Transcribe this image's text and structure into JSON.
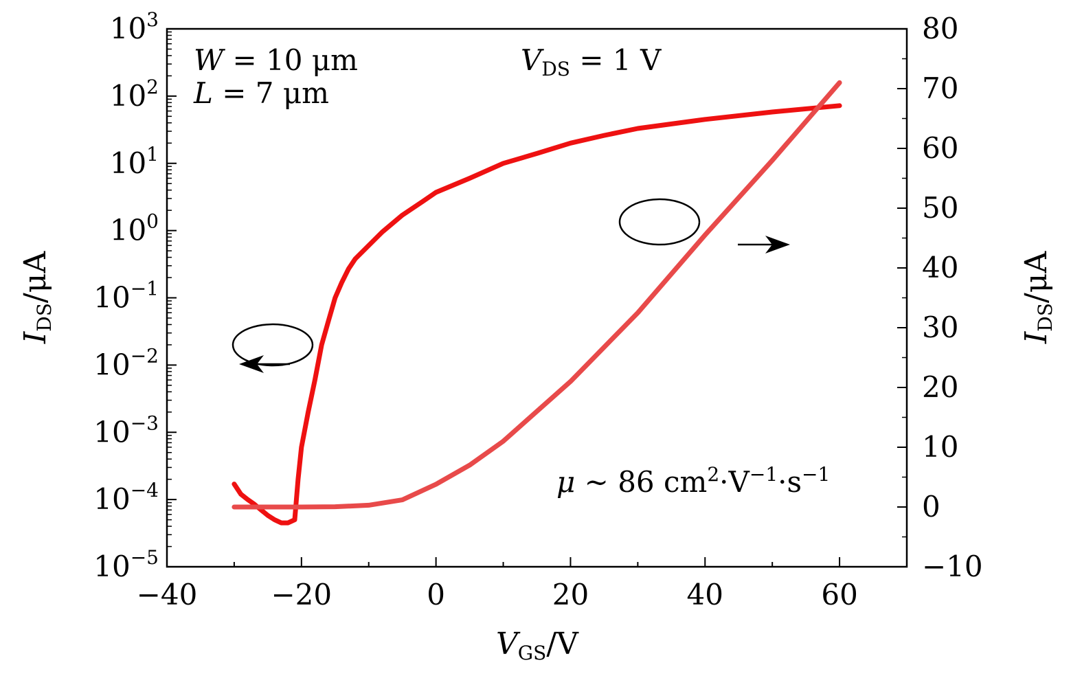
{
  "chart_data": {
    "type": "line",
    "x_axis": {
      "label_main": "V",
      "label_sub": "GS",
      "label_unit": "/V",
      "range": [
        -40,
        70
      ],
      "ticks": [
        -40,
        -20,
        0,
        20,
        40,
        60
      ],
      "tick_labels": [
        "−40",
        "−20",
        "0",
        "20",
        "40",
        "60"
      ]
    },
    "y_left": {
      "label_main": "I",
      "label_sub": "DS",
      "label_unit": "/μA",
      "scale": "log",
      "range_exp": [
        -5,
        3
      ],
      "tick_base": "10",
      "tick_exponents": [
        "−5",
        "−4",
        "−3",
        "−2",
        "−1",
        "0",
        "1",
        "2",
        "3"
      ]
    },
    "y_right": {
      "label_main": "I",
      "label_sub": "DS",
      "label_unit": "/μA",
      "scale": "linear",
      "range": [
        -10,
        80
      ],
      "ticks": [
        -10,
        0,
        10,
        20,
        30,
        40,
        50,
        60,
        70,
        80
      ],
      "tick_labels": [
        "−10",
        "0",
        "10",
        "20",
        "30",
        "40",
        "50",
        "60",
        "70",
        "80"
      ]
    },
    "series": [
      {
        "axis": "left-log",
        "color": "#ee1111",
        "points": [
          [
            -30,
            0.00017
          ],
          [
            -29,
            0.00012
          ],
          [
            -28,
            0.0001
          ],
          [
            -27,
            8.5e-05
          ],
          [
            -26,
            7e-05
          ],
          [
            -25,
            5.8e-05
          ],
          [
            -24,
            5e-05
          ],
          [
            -23,
            4.5e-05
          ],
          [
            -22,
            4.5e-05
          ],
          [
            -21,
            5e-05
          ],
          [
            -20.5,
            0.0002
          ],
          [
            -20,
            0.0006
          ],
          [
            -19,
            0.002
          ],
          [
            -18,
            0.006
          ],
          [
            -17,
            0.02
          ],
          [
            -16,
            0.045
          ],
          [
            -15,
            0.1
          ],
          [
            -14,
            0.17
          ],
          [
            -13,
            0.27
          ],
          [
            -12,
            0.38
          ],
          [
            -10,
            0.6
          ],
          [
            -8,
            0.95
          ],
          [
            -5,
            1.7
          ],
          [
            -2,
            2.7
          ],
          [
            0,
            3.7
          ],
          [
            5,
            6
          ],
          [
            10,
            10
          ],
          [
            15,
            14
          ],
          [
            20,
            20
          ],
          [
            25,
            26
          ],
          [
            30,
            33
          ],
          [
            40,
            45
          ],
          [
            50,
            58
          ],
          [
            60,
            72
          ]
        ]
      },
      {
        "axis": "right-linear",
        "color": "#e84a4a",
        "points": [
          [
            -30,
            0
          ],
          [
            -20,
            0
          ],
          [
            -15,
            0.05
          ],
          [
            -10,
            0.3
          ],
          [
            -5,
            1.2
          ],
          [
            0,
            3.8
          ],
          [
            5,
            7
          ],
          [
            10,
            11
          ],
          [
            15,
            16
          ],
          [
            20,
            21
          ],
          [
            30,
            32.5
          ],
          [
            40,
            45.5
          ],
          [
            50,
            58
          ],
          [
            60,
            71
          ]
        ]
      }
    ],
    "annotations": {
      "w_var": "W",
      "w_text": " = 10 μm",
      "l_var": "L",
      "l_text": " = 7 μm",
      "vds_var": "V",
      "vds_sub": "DS",
      "vds_text": " = 1 V",
      "mu_var": "μ",
      "mu_text": " ~ 86 cm",
      "mu_sup1": "2",
      "mu_mid1": "·V",
      "mu_sup2": "−1",
      "mu_mid2": "·s",
      "mu_sup3": "−1"
    }
  }
}
